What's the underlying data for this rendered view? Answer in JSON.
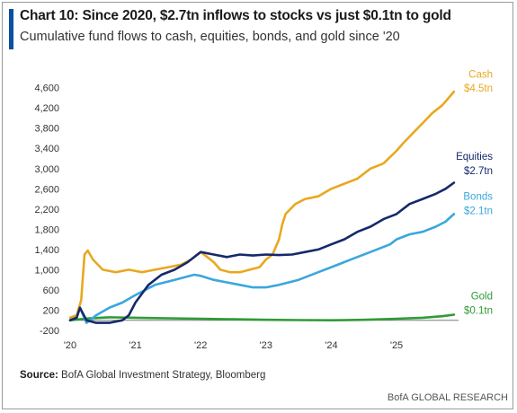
{
  "header": {
    "title": "Chart 10: Since 2020, $2.7tn inflows to stocks vs just $0.1tn to gold",
    "subtitle": "Cumulative fund flows to cash, equities, bonds, and gold since '20"
  },
  "footer": {
    "source_label": "Source:",
    "source_text": " BofA Global Investment Strategy, Bloomberg",
    "brand": "BofA GLOBAL RESEARCH"
  },
  "colors": {
    "accent": "#0a50a1",
    "cash": "#e8a820",
    "equities": "#15296b",
    "bonds": "#3aa7dc",
    "gold": "#2e9c35"
  },
  "chart_data": {
    "type": "line",
    "title": "Chart 10: Since 2020, $2.7tn inflows to stocks vs just $0.1tn to gold",
    "subtitle": "Cumulative fund flows to cash, equities, bonds, and gold since '20",
    "xlim": [
      2020.0,
      2025.95
    ],
    "ylim": [
      -200,
      4700
    ],
    "x_ticks": [
      {
        "x": 2020,
        "label": "'20"
      },
      {
        "x": 2021,
        "label": "'21"
      },
      {
        "x": 2022,
        "label": "'22"
      },
      {
        "x": 2023,
        "label": "'23"
      },
      {
        "x": 2024,
        "label": "'24"
      },
      {
        "x": 2025,
        "label": "'25"
      }
    ],
    "y_ticks": [
      -200,
      200,
      600,
      1000,
      1400,
      1800,
      2200,
      2600,
      3000,
      3400,
      3800,
      4200,
      4600
    ],
    "y_tick_labels": [
      "-200",
      "200",
      "600",
      "1,000",
      "1,400",
      "1,800",
      "2,200",
      "2,600",
      "3,000",
      "3,400",
      "3,800",
      "4,200",
      "4,600"
    ],
    "grid": false,
    "series": [
      {
        "name": "Cash",
        "end_label": "$4.5tn",
        "color_key": "cash",
        "x": [
          2020.0,
          2020.1,
          2020.17,
          2020.22,
          2020.27,
          2020.35,
          2020.5,
          2020.7,
          2020.9,
          2021.1,
          2021.3,
          2021.5,
          2021.7,
          2021.85,
          2022.0,
          2022.1,
          2022.2,
          2022.3,
          2022.45,
          2022.6,
          2022.75,
          2022.9,
          2023.0,
          2023.1,
          2023.2,
          2023.25,
          2023.3,
          2023.45,
          2023.6,
          2023.8,
          2024.0,
          2024.2,
          2024.4,
          2024.6,
          2024.8,
          2025.0,
          2025.1,
          2025.25,
          2025.4,
          2025.55,
          2025.7,
          2025.8,
          2025.88
        ],
        "y": [
          50,
          100,
          400,
          1300,
          1380,
          1200,
          1000,
          950,
          1000,
          950,
          1000,
          1050,
          1100,
          1200,
          1350,
          1250,
          1150,
          1000,
          950,
          950,
          1000,
          1050,
          1200,
          1300,
          1600,
          1900,
          2100,
          2300,
          2400,
          2450,
          2600,
          2700,
          2800,
          3000,
          3100,
          3350,
          3500,
          3700,
          3900,
          4100,
          4250,
          4400,
          4520
        ]
      },
      {
        "name": "Equities",
        "end_label": "$2.7tn",
        "color_key": "equities",
        "x": [
          2020.0,
          2020.1,
          2020.15,
          2020.25,
          2020.4,
          2020.6,
          2020.8,
          2020.9,
          2021.0,
          2021.2,
          2021.4,
          2021.6,
          2021.8,
          2022.0,
          2022.2,
          2022.4,
          2022.6,
          2022.8,
          2023.0,
          2023.2,
          2023.4,
          2023.6,
          2023.8,
          2024.0,
          2024.2,
          2024.4,
          2024.6,
          2024.8,
          2025.0,
          2025.2,
          2025.4,
          2025.6,
          2025.75,
          2025.88
        ],
        "y": [
          0,
          50,
          250,
          0,
          -50,
          -50,
          0,
          100,
          350,
          700,
          900,
          1000,
          1150,
          1350,
          1300,
          1250,
          1300,
          1280,
          1300,
          1290,
          1300,
          1350,
          1400,
          1500,
          1600,
          1750,
          1850,
          2000,
          2100,
          2300,
          2400,
          2500,
          2600,
          2720
        ]
      },
      {
        "name": "Bonds",
        "end_label": "$2.1tn",
        "color_key": "bonds",
        "x": [
          2020.0,
          2020.1,
          2020.15,
          2020.25,
          2020.4,
          2020.6,
          2020.8,
          2021.0,
          2021.3,
          2021.6,
          2021.9,
          2022.0,
          2022.2,
          2022.4,
          2022.6,
          2022.8,
          2023.0,
          2023.2,
          2023.5,
          2023.8,
          2024.0,
          2024.3,
          2024.6,
          2024.9,
          2025.0,
          2025.2,
          2025.4,
          2025.6,
          2025.75,
          2025.88
        ],
        "y": [
          0,
          100,
          250,
          -50,
          100,
          250,
          350,
          500,
          700,
          800,
          900,
          880,
          800,
          750,
          700,
          650,
          650,
          700,
          800,
          950,
          1050,
          1200,
          1350,
          1500,
          1600,
          1700,
          1750,
          1850,
          1950,
          2100
        ]
      },
      {
        "name": "Gold",
        "end_label": "$0.1tn",
        "color_key": "gold",
        "x": [
          2020.0,
          2020.3,
          2020.6,
          2021.0,
          2021.5,
          2022.0,
          2022.5,
          2023.0,
          2023.5,
          2024.0,
          2024.5,
          2025.0,
          2025.4,
          2025.7,
          2025.88
        ],
        "y": [
          0,
          40,
          60,
          50,
          40,
          30,
          20,
          10,
          5,
          0,
          10,
          30,
          50,
          80,
          110
        ]
      }
    ]
  }
}
